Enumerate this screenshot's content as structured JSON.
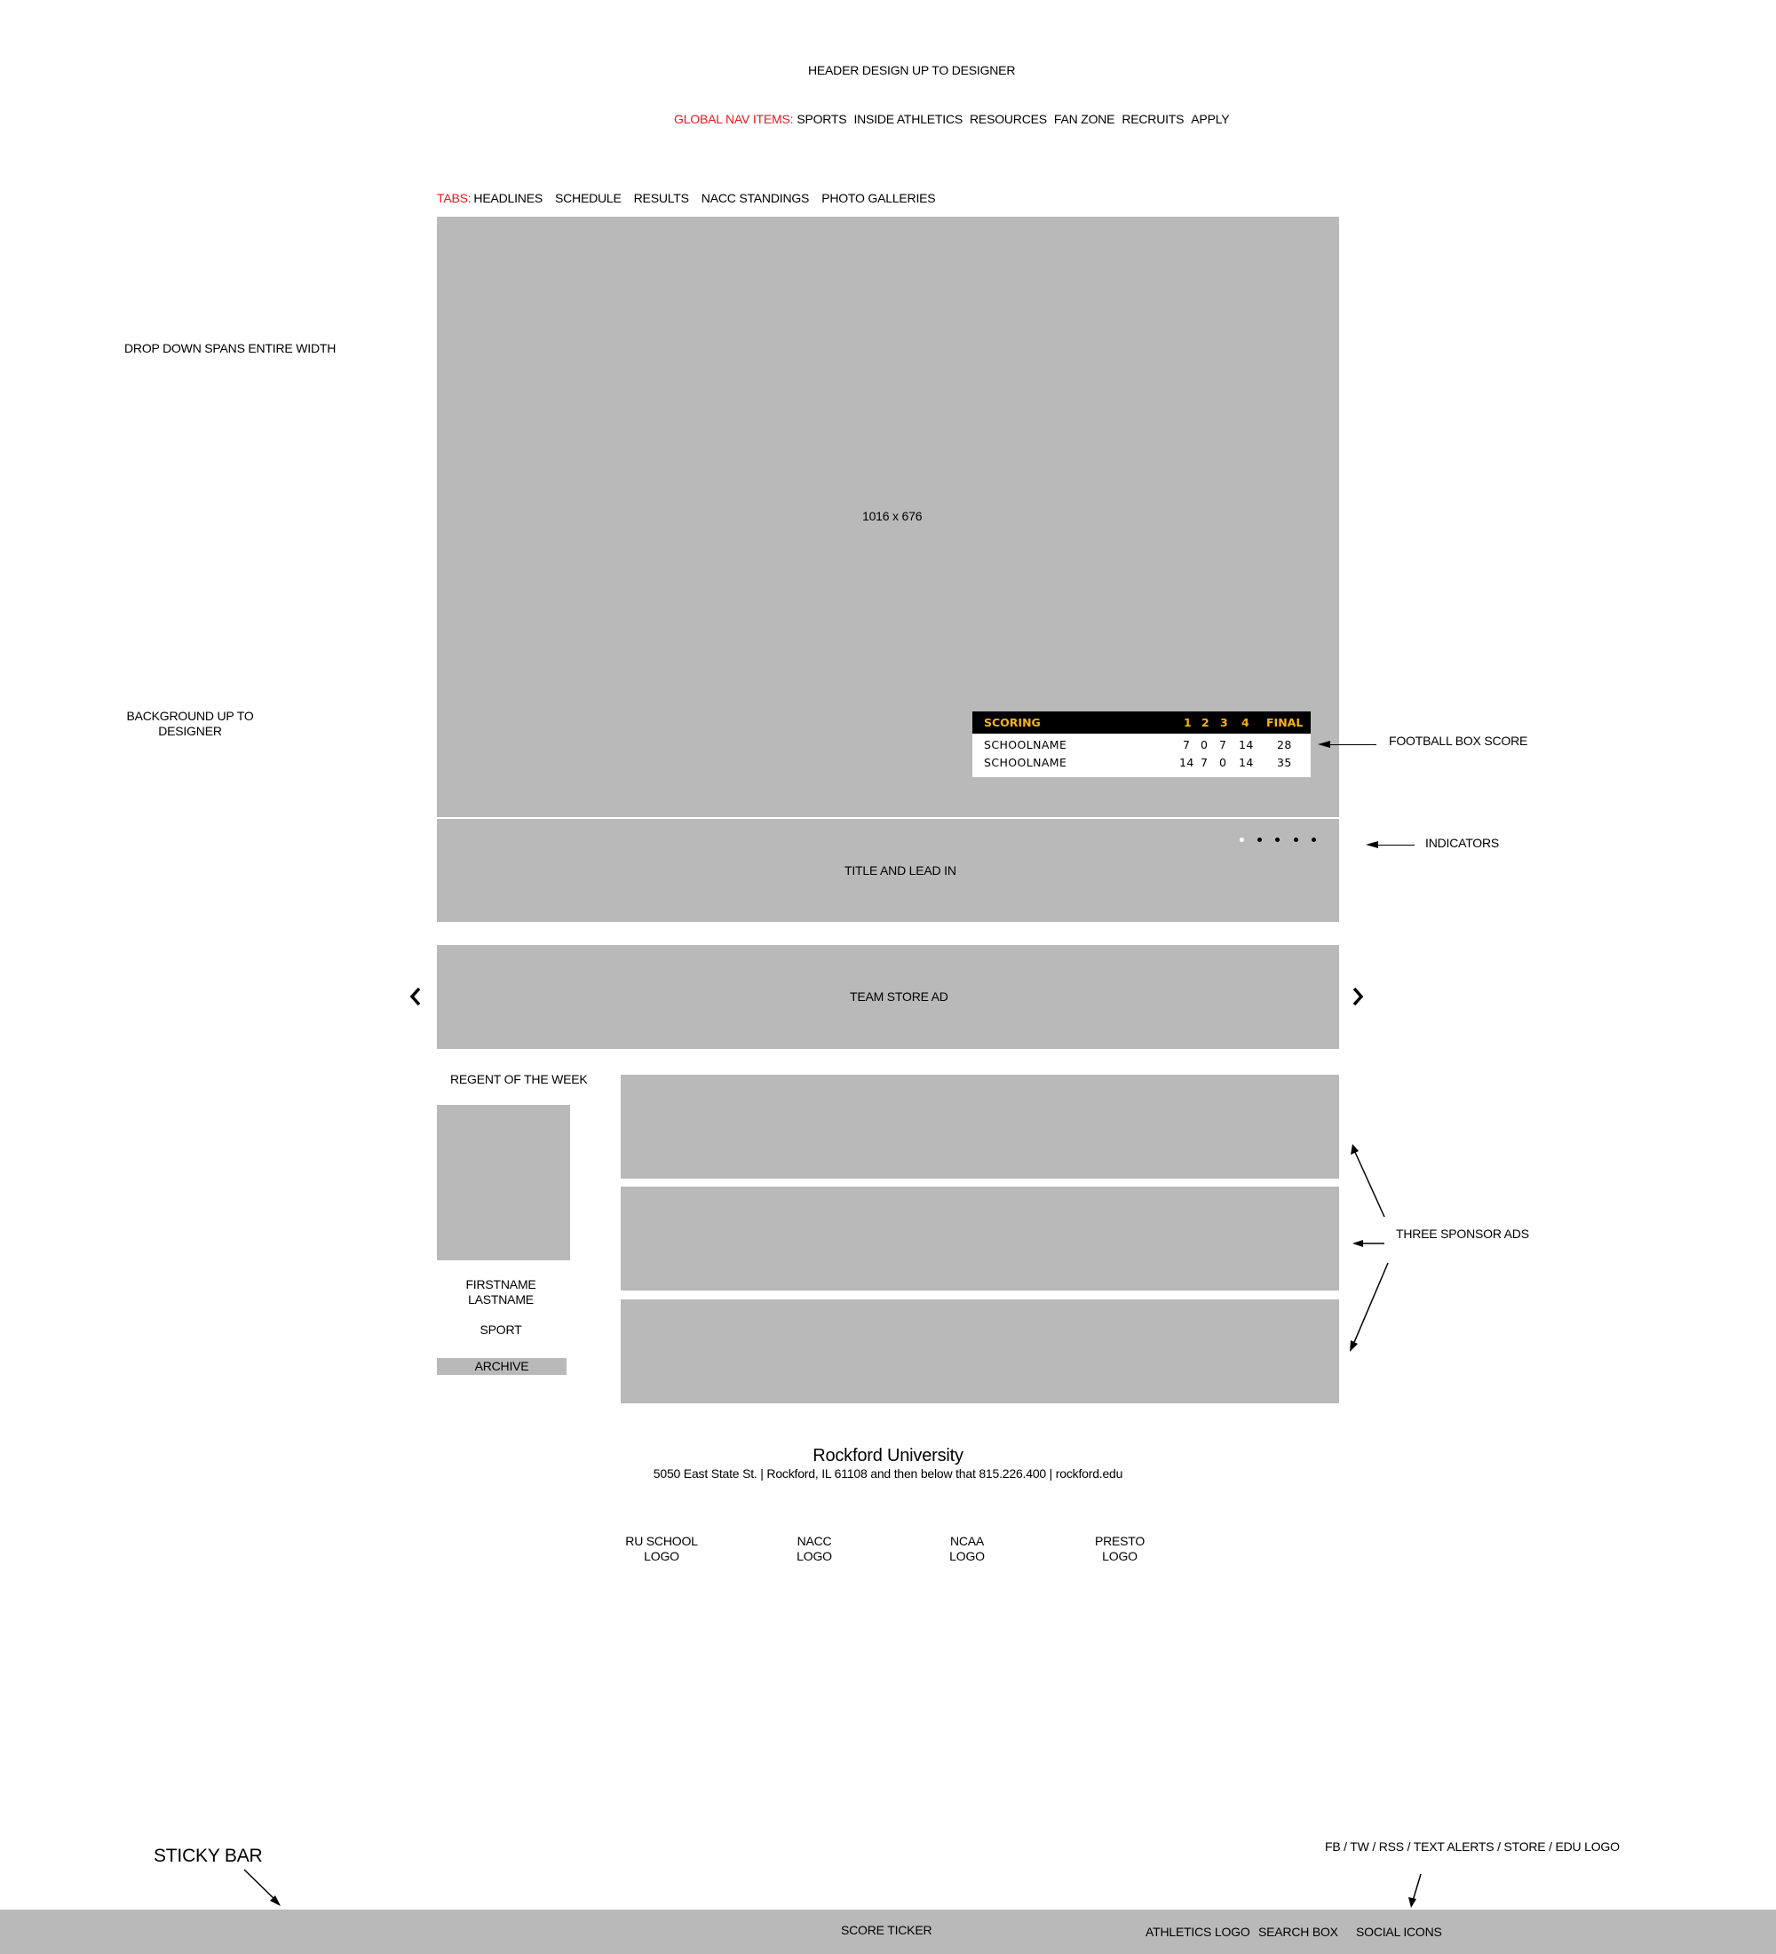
{
  "header": {
    "note": "HEADER DESIGN UP TO DESIGNER"
  },
  "global_nav": {
    "label": "GLOBAL NAV ITEMS:",
    "items": [
      "SPORTS",
      "INSIDE ATHLETICS",
      "RESOURCES",
      "FAN ZONE",
      "RECRUITS",
      "APPLY"
    ]
  },
  "tabs": {
    "label": "TABS:",
    "items": [
      "HEADLINES",
      "SCHEDULE",
      "RESULTS",
      "NACC STANDINGS",
      "PHOTO GALLERIES"
    ]
  },
  "notes": {
    "dropdown": "DROP DOWN SPANS ENTIRE WIDTH",
    "background_line1": "BACKGROUND UP TO",
    "background_line2": "DESIGNER",
    "football_box_score": "FOOTBALL BOX SCORE",
    "indicators": "INDICATORS",
    "three_sponsor_ads": "THREE SPONSOR ADS",
    "sticky_bar": "STICKY BAR",
    "social_list": "FB / TW / RSS / TEXT ALERTS / STORE / EDU LOGO"
  },
  "hero": {
    "size_label": "1016 x 676",
    "title_lead": "TITLE AND LEAD IN",
    "indicator_count": 5,
    "active_indicator": 0
  },
  "scoreboard": {
    "header": [
      "SCORING",
      "1",
      "2",
      "3",
      "4",
      "FINAL"
    ],
    "rows": [
      {
        "team": "SCHOOLNAME",
        "q1": "7",
        "q2": "0",
        "q3": "7",
        "q4": "14",
        "final": "28"
      },
      {
        "team": "SCHOOLNAME",
        "q1": "14",
        "q2": "7",
        "q3": "0",
        "q4": "14",
        "final": "35"
      }
    ]
  },
  "team_store_ad": {
    "label": "TEAM STORE AD"
  },
  "regent": {
    "title": "REGENT OF THE WEEK",
    "firstname": "FIRSTNAME",
    "lastname": "LASTNAME",
    "sport": "SPORT",
    "archive": "ARCHIVE"
  },
  "footer": {
    "name": "Rockford University",
    "address": "5050 East State St. | Rockford, IL 61108 and then below that 815.226.400 | rockford.edu",
    "logos": [
      {
        "line1": "RU SCHOOL",
        "line2": "LOGO"
      },
      {
        "line1": "NACC",
        "line2": "LOGO"
      },
      {
        "line1": "NCAA",
        "line2": "LOGO"
      },
      {
        "line1": "PRESTO",
        "line2": "LOGO"
      }
    ]
  },
  "sticky": {
    "score_ticker": "SCORE TICKER",
    "athletics_logo": "ATHLETICS LOGO",
    "search_box": "SEARCH BOX",
    "social_icons": "SOCIAL ICONS"
  },
  "colors": {
    "accent": "#e8191d",
    "placeholder": "#b9b9b9",
    "score_gold": "#f5b316"
  }
}
